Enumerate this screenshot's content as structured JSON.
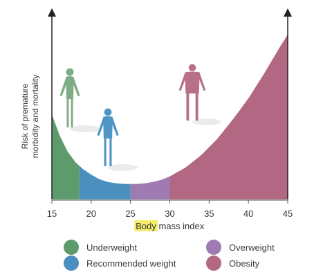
{
  "chart_data": {
    "type": "area",
    "title": "",
    "xlabel_highlight": "Body",
    "xlabel_rest": " mass index",
    "ylabel_lines": [
      "Risk of premature",
      "morbidity and mortality"
    ],
    "xlim": [
      15,
      45
    ],
    "ticks": [
      15,
      20,
      25,
      30,
      35,
      40,
      45
    ],
    "curve": [
      {
        "x": 15,
        "y": 0.48
      },
      {
        "x": 16,
        "y": 0.36
      },
      {
        "x": 17,
        "y": 0.27
      },
      {
        "x": 18,
        "y": 0.21
      },
      {
        "x": 19,
        "y": 0.17
      },
      {
        "x": 20,
        "y": 0.14
      },
      {
        "x": 21,
        "y": 0.115
      },
      {
        "x": 22,
        "y": 0.1
      },
      {
        "x": 23,
        "y": 0.092
      },
      {
        "x": 24,
        "y": 0.088
      },
      {
        "x": 25,
        "y": 0.087
      },
      {
        "x": 26,
        "y": 0.088
      },
      {
        "x": 27,
        "y": 0.092
      },
      {
        "x": 28,
        "y": 0.1
      },
      {
        "x": 29,
        "y": 0.112
      },
      {
        "x": 30,
        "y": 0.13
      },
      {
        "x": 32,
        "y": 0.18
      },
      {
        "x": 34,
        "y": 0.25
      },
      {
        "x": 36,
        "y": 0.34
      },
      {
        "x": 38,
        "y": 0.45
      },
      {
        "x": 40,
        "y": 0.57
      },
      {
        "x": 42,
        "y": 0.71
      },
      {
        "x": 44,
        "y": 0.86
      },
      {
        "x": 45,
        "y": 0.93
      }
    ],
    "bands": [
      {
        "name": "Underweight",
        "from": 15,
        "to": 18.5,
        "color": "#5e9b6c"
      },
      {
        "name": "Recommended weight",
        "from": 18.5,
        "to": 25,
        "color": "#4a8fbd"
      },
      {
        "name": "Overweight",
        "from": 25,
        "to": 30,
        "color": "#9e7bb0"
      },
      {
        "name": "Obesity",
        "from": 30,
        "to": 45,
        "color": "#b26882"
      }
    ],
    "legend": [
      {
        "label": "Underweight",
        "color": "#5e9b6c"
      },
      {
        "label": "Overweight",
        "color": "#9e7bb0"
      },
      {
        "label": "Recommended weight",
        "color": "#4a8fbd"
      },
      {
        "label": "Obesity",
        "color": "#b26882"
      }
    ],
    "highlight_color": "#f4ec6a"
  }
}
